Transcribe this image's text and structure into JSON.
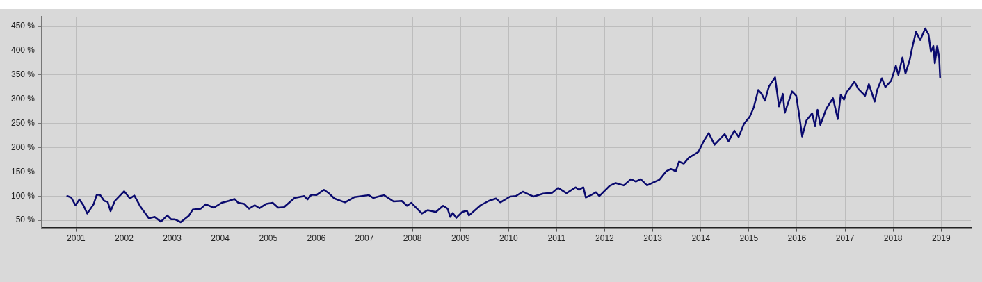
{
  "chart_data": {
    "type": "line",
    "x": [
      "2000-10-26",
      "2000-11-25",
      "2000-12-27",
      "2001-01-26",
      "2001-02-25",
      "2001-03-27",
      "2001-05-14",
      "2001-06-06",
      "2001-07-01",
      "2001-08-03",
      "2001-08-29",
      "2001-09-20",
      "2001-10-23",
      "2002-01-01",
      "2002-02-14",
      "2002-03-20",
      "2002-05-03",
      "2002-07-08",
      "2002-08-21",
      "2002-10-08",
      "2002-11-25",
      "2002-12-24",
      "2003-01-22",
      "2003-03-06",
      "2003-05-07",
      "2003-06-06",
      "2003-08-07",
      "2003-09-13",
      "2003-11-14",
      "2004-01-12",
      "2004-03-06",
      "2004-04-19",
      "2004-05-18",
      "2004-07-01",
      "2004-08-07",
      "2004-09-20",
      "2004-10-26",
      "2004-12-17",
      "2005-02-03",
      "2005-03-17",
      "2005-04-30",
      "2005-07-19",
      "2005-10-01",
      "2005-10-26",
      "2005-11-25",
      "2006-01-01",
      "2006-02-28",
      "2006-04-05",
      "2006-05-18",
      "2006-08-07",
      "2006-10-19",
      "2007-02-03",
      "2007-03-09",
      "2007-05-29",
      "2007-08-11",
      "2007-10-12",
      "2007-11-21",
      "2007-12-24",
      "2008-03-13",
      "2008-04-26",
      "2008-06-27",
      "2008-08-21",
      "2008-09-24",
      "2008-10-15",
      "2008-11-03",
      "2008-11-29",
      "2009-01-12",
      "2009-02-18",
      "2009-03-06",
      "2009-06-02",
      "2009-08-03",
      "2009-09-27",
      "2009-10-30",
      "2010-01-12",
      "2010-02-25",
      "2010-04-19",
      "2010-07-08",
      "2010-09-20",
      "2010-11-29",
      "2011-01-12",
      "2011-03-17",
      "2011-05-25",
      "2011-06-20",
      "2011-07-23",
      "2011-08-11",
      "2011-09-27",
      "2011-10-26",
      "2011-11-21",
      "2012-02-07",
      "2012-03-24",
      "2012-05-25",
      "2012-07-19",
      "2012-08-25",
      "2012-10-01",
      "2012-11-18",
      "2012-12-27",
      "2013-02-21",
      "2013-04-12",
      "2013-05-18",
      "2013-06-24",
      "2013-07-19",
      "2013-08-25",
      "2013-10-01",
      "2013-12-13",
      "2014-01-26",
      "2014-03-02",
      "2014-04-15",
      "2014-07-01",
      "2014-07-30",
      "2014-09-13",
      "2014-10-15",
      "2014-11-25",
      "2015-01-08",
      "2015-02-07",
      "2015-03-13",
      "2015-04-08",
      "2015-05-03",
      "2015-06-02",
      "2015-07-19",
      "2015-08-18",
      "2015-09-16",
      "2015-10-01",
      "2015-11-25",
      "2015-12-27",
      "2016-01-19",
      "2016-02-10",
      "2016-03-13",
      "2016-04-26",
      "2016-05-18",
      "2016-06-06",
      "2016-06-27",
      "2016-08-11",
      "2016-10-01",
      "2016-11-07",
      "2016-11-29",
      "2016-12-24",
      "2017-01-12",
      "2017-03-13",
      "2017-04-12",
      "2017-06-02",
      "2017-07-01",
      "2017-08-14",
      "2017-09-02",
      "2017-10-08",
      "2017-11-03",
      "2017-12-17",
      "2018-01-22",
      "2018-02-10",
      "2018-03-13",
      "2018-04-05",
      "2018-05-07",
      "2018-05-25",
      "2018-06-24",
      "2018-07-26",
      "2018-09-02",
      "2018-09-27",
      "2018-10-15",
      "2018-11-03",
      "2018-11-14",
      "2018-12-02",
      "2018-12-17",
      "2018-12-24"
    ],
    "series": [
      {
        "color": "#0a0a6e",
        "values": [
          100,
          97,
          81,
          93,
          81,
          64,
          83,
          102,
          103,
          90,
          88,
          69,
          90,
          110,
          95,
          101,
          79,
          54,
          57,
          47,
          60,
          52,
          52,
          46,
          59,
          72,
          74,
          83,
          76,
          86,
          90,
          94,
          86,
          84,
          74,
          81,
          75,
          84,
          86,
          76,
          77,
          96,
          100,
          93,
          103,
          102,
          113,
          106,
          95,
          87,
          98,
          102,
          96,
          102,
          89,
          90,
          80,
          86,
          64,
          71,
          67,
          80,
          74,
          57,
          65,
          55,
          67,
          70,
          60,
          81,
          90,
          95,
          87,
          99,
          100,
          109,
          99,
          105,
          107,
          117,
          106,
          118,
          113,
          118,
          97,
          103,
          108,
          100,
          121,
          127,
          122,
          135,
          130,
          135,
          122,
          127,
          134,
          151,
          156,
          151,
          171,
          167,
          179,
          191,
          215,
          230,
          206,
          228,
          213,
          235,
          222,
          249,
          264,
          283,
          319,
          311,
          297,
          326,
          345,
          285,
          311,
          272,
          316,
          307,
          266,
          223,
          256,
          271,
          244,
          278,
          247,
          280,
          302,
          259,
          309,
          299,
          314,
          336,
          321,
          307,
          331,
          295,
          319,
          343,
          325,
          338,
          369,
          350,
          386,
          353,
          381,
          405,
          439,
          422,
          446,
          434,
          398,
          410,
          374,
          410,
          386,
          345
        ]
      }
    ],
    "xlim": [
      "2000-04-15",
      "2019-08-15"
    ],
    "xticks": [
      "2001",
      "2002",
      "2003",
      "2004",
      "2005",
      "2006",
      "2007",
      "2008",
      "2009",
      "2010",
      "2011",
      "2012",
      "2013",
      "2014",
      "2015",
      "2016",
      "2017",
      "2018",
      "2019"
    ],
    "ylim": [
      35,
      470
    ],
    "yticks": [
      {
        "value": 50,
        "label": "50 %"
      },
      {
        "value": 100,
        "label": "100 %"
      },
      {
        "value": 150,
        "label": "150 %"
      },
      {
        "value": 200,
        "label": "200 %"
      },
      {
        "value": 250,
        "label": "250 %"
      },
      {
        "value": 300,
        "label": "300 %"
      },
      {
        "value": 350,
        "label": "350 %"
      },
      {
        "value": 400,
        "label": "400 %"
      },
      {
        "value": 450,
        "label": "450 %"
      }
    ],
    "grid": true,
    "legend": false,
    "marker": "none",
    "line_style": "solid"
  }
}
